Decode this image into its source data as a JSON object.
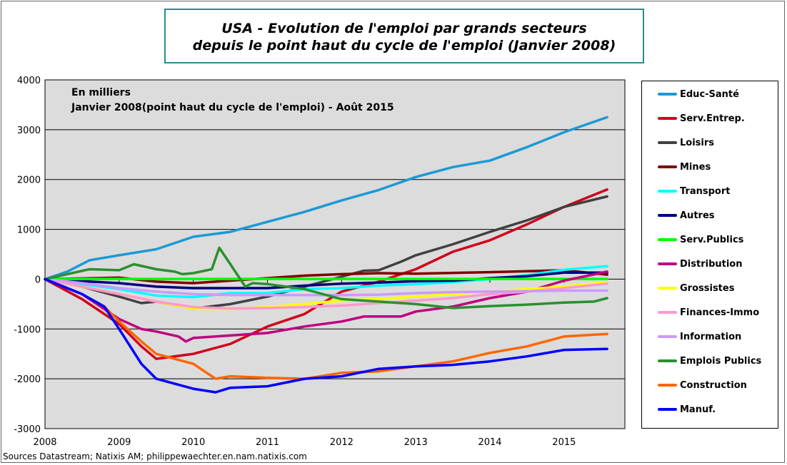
{
  "chart_data": {
    "type": "line",
    "title": [
      "USA - Evolution de l'emploi par grands secteurs",
      "depuis le point haut du cycle de l'emploi  (Janvier 2008)"
    ],
    "annotations": [
      "En milliers",
      "Janvier 2008(point  haut du cycle de l'emploi)  - Août 2015"
    ],
    "xlabel": "",
    "ylabel": "",
    "xlim": [
      2008,
      2015.82
    ],
    "ylim": [
      -3000,
      4000
    ],
    "x_ticks": [
      "2008",
      "2009",
      "2010",
      "2011",
      "2012",
      "2013",
      "2014",
      "2015"
    ],
    "y_ticks": [
      "4000",
      "3000",
      "2000",
      "1000",
      "0",
      "-1000",
      "-2000",
      "-3000"
    ],
    "grid": "horizontal",
    "legend_position": "right",
    "source": "Sources Datastream; Natixis AM; philippewaechter.en.nam.natixis.com",
    "series": [
      {
        "name": "Educ-Santé",
        "color": "#1a9ad6",
        "x": [
          2008,
          2008.3,
          2008.6,
          2009,
          2009.5,
          2010,
          2010.5,
          2011,
          2011.5,
          2012,
          2012.5,
          2013,
          2013.5,
          2014,
          2014.5,
          2015,
          2015.58
        ],
        "y": [
          0,
          150,
          380,
          480,
          600,
          850,
          950,
          1150,
          1350,
          1580,
          1790,
          2050,
          2250,
          2380,
          2650,
          2950,
          3250
        ]
      },
      {
        "name": "Serv.Entrep.",
        "color": "#d0021b",
        "x": [
          2008,
          2008.5,
          2009,
          2009.3,
          2009.5,
          2010,
          2010.5,
          2011,
          2011.5,
          2012,
          2012.5,
          2013,
          2013.5,
          2014,
          2014.5,
          2015,
          2015.58
        ],
        "y": [
          0,
          -400,
          -900,
          -1350,
          -1600,
          -1500,
          -1300,
          -950,
          -700,
          -250,
          -50,
          200,
          550,
          780,
          1100,
          1450,
          1800
        ]
      },
      {
        "name": "Loisirs",
        "color": "#404040",
        "x": [
          2008,
          2008.5,
          2009,
          2009.3,
          2009.5,
          2010,
          2010.5,
          2011,
          2011.5,
          2012,
          2012.3,
          2012.5,
          2012.8,
          2013,
          2013.5,
          2014,
          2014.5,
          2015,
          2015.58
        ],
        "y": [
          0,
          -150,
          -350,
          -480,
          -450,
          -590,
          -500,
          -350,
          -150,
          50,
          170,
          180,
          350,
          480,
          700,
          950,
          1180,
          1450,
          1660
        ]
      },
      {
        "name": "Mines",
        "color": "#800000",
        "x": [
          2008,
          2009,
          2009.5,
          2010,
          2010.5,
          2011,
          2011.5,
          2012,
          2012.5,
          2013,
          2014,
          2015,
          2015.58
        ],
        "y": [
          0,
          30,
          -50,
          -80,
          -30,
          20,
          70,
          100,
          120,
          110,
          140,
          180,
          90
        ]
      },
      {
        "name": "Transport",
        "color": "#00ffff",
        "x": [
          2008,
          2008.5,
          2009,
          2009.5,
          2010,
          2010.5,
          2011,
          2011.5,
          2012,
          2012.5,
          2013,
          2013.5,
          2014,
          2014.5,
          2015,
          2015.58
        ],
        "y": [
          0,
          -100,
          -200,
          -330,
          -360,
          -280,
          -280,
          -200,
          -180,
          -130,
          -100,
          -60,
          0,
          80,
          190,
          260
        ]
      },
      {
        "name": "Autres",
        "color": "#000080",
        "x": [
          2008,
          2008.5,
          2009,
          2009.5,
          2010,
          2010.5,
          2011,
          2011.5,
          2012,
          2012.5,
          2013,
          2013.5,
          2014,
          2014.5,
          2015,
          2015.58
        ],
        "y": [
          0,
          -40,
          -80,
          -150,
          -180,
          -180,
          -180,
          -130,
          -90,
          -70,
          -40,
          -30,
          20,
          60,
          130,
          130
        ]
      },
      {
        "name": "Serv.Publics",
        "color": "#00ff00",
        "x": [
          2008,
          2015.58
        ],
        "y": [
          5,
          5
        ]
      },
      {
        "name": "Distribution",
        "color": "#c0007f",
        "x": [
          2008,
          2008.5,
          2009,
          2009.3,
          2009.5,
          2009.8,
          2009.9,
          2010,
          2010.5,
          2011,
          2011.5,
          2012,
          2012.3,
          2012.8,
          2013,
          2013.5,
          2014,
          2014.5,
          2015,
          2015.58
        ],
        "y": [
          0,
          -300,
          -800,
          -1000,
          -1050,
          -1150,
          -1250,
          -1180,
          -1130,
          -1080,
          -950,
          -850,
          -750,
          -750,
          -650,
          -550,
          -380,
          -250,
          -30,
          150
        ]
      },
      {
        "name": "Grossistes",
        "color": "#ffff00",
        "x": [
          2008,
          2008.5,
          2009,
          2009.5,
          2010,
          2010.5,
          2011,
          2011.5,
          2012,
          2012.5,
          2013,
          2013.5,
          2014,
          2014.5,
          2015,
          2015.58
        ],
        "y": [
          0,
          -150,
          -300,
          -450,
          -590,
          -600,
          -560,
          -500,
          -430,
          -400,
          -350,
          -300,
          -250,
          -200,
          -150,
          -60
        ]
      },
      {
        "name": "Finances-Immo",
        "color": "#ff99cc",
        "x": [
          2008,
          2008.5,
          2009,
          2009.5,
          2010,
          2010.5,
          2011,
          2011.5,
          2012,
          2012.5,
          2013,
          2013.5,
          2014,
          2014.5,
          2015,
          2015.58
        ],
        "y": [
          0,
          -150,
          -300,
          -450,
          -560,
          -590,
          -580,
          -560,
          -530,
          -480,
          -430,
          -380,
          -300,
          -250,
          -180,
          -90
        ]
      },
      {
        "name": "Information",
        "color": "#cc99ff",
        "x": [
          2008,
          2008.5,
          2009,
          2009.5,
          2010,
          2010.5,
          2011,
          2011.5,
          2012,
          2012.5,
          2013,
          2013.5,
          2014,
          2014.5,
          2015,
          2015.58
        ],
        "y": [
          0,
          -80,
          -180,
          -250,
          -300,
          -320,
          -320,
          -320,
          -320,
          -310,
          -280,
          -260,
          -250,
          -240,
          -230,
          -230
        ]
      },
      {
        "name": "Emplois Publics",
        "color": "#2a9030",
        "x": [
          2008,
          2008.3,
          2008.6,
          2009,
          2009.2,
          2009.5,
          2009.75,
          2009.85,
          2010,
          2010.25,
          2010.35,
          2010.5,
          2010.7,
          2010.8,
          2011,
          2011.5,
          2012,
          2012.5,
          2013,
          2013.5,
          2014,
          2014.5,
          2015,
          2015.4,
          2015.58
        ],
        "y": [
          0,
          100,
          200,
          180,
          300,
          200,
          150,
          100,
          120,
          200,
          630,
          300,
          -150,
          -80,
          -100,
          -200,
          -400,
          -450,
          -500,
          -580,
          -540,
          -510,
          -470,
          -450,
          -380
        ]
      },
      {
        "name": "Construction",
        "color": "#ff6600",
        "x": [
          2008,
          2008.5,
          2008.8,
          2009,
          2009.3,
          2009.5,
          2010,
          2010.3,
          2010.5,
          2011,
          2011.5,
          2012,
          2012.5,
          2013,
          2013.5,
          2014,
          2014.5,
          2015,
          2015.58
        ],
        "y": [
          0,
          -300,
          -550,
          -850,
          -1250,
          -1500,
          -1700,
          -2000,
          -1950,
          -1980,
          -2000,
          -1880,
          -1850,
          -1750,
          -1650,
          -1480,
          -1350,
          -1150,
          -1100
        ]
      },
      {
        "name": "Manuf.",
        "color": "#0000ff",
        "x": [
          2008,
          2008.5,
          2008.8,
          2009,
          2009.3,
          2009.5,
          2010,
          2010.3,
          2010.5,
          2011,
          2011.5,
          2012,
          2012.5,
          2013,
          2013.5,
          2014,
          2014.5,
          2015,
          2015.58
        ],
        "y": [
          0,
          -300,
          -550,
          -1000,
          -1700,
          -2000,
          -2200,
          -2270,
          -2180,
          -2150,
          -2000,
          -1950,
          -1800,
          -1750,
          -1720,
          -1650,
          -1550,
          -1420,
          -1400
        ]
      }
    ]
  }
}
